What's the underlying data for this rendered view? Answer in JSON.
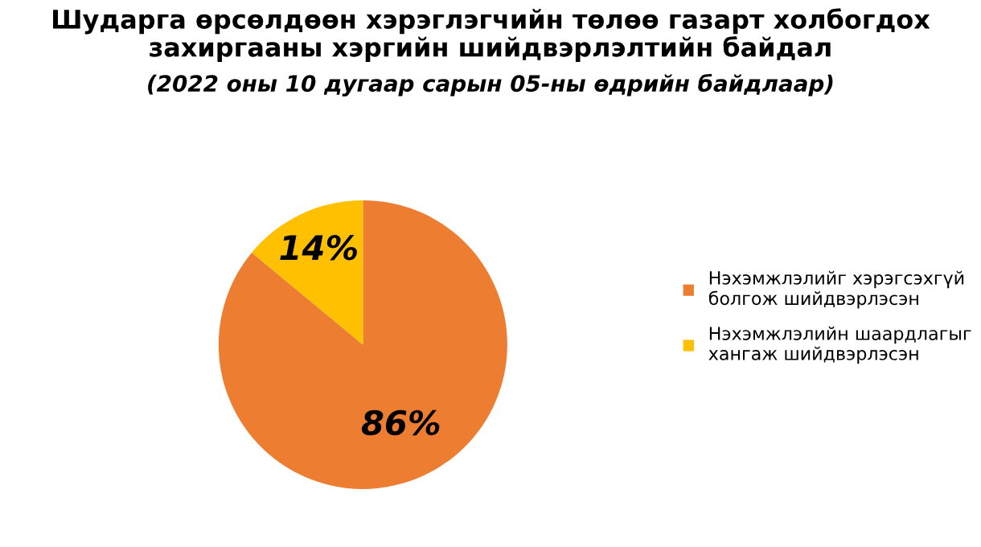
{
  "chart_data": {
    "type": "pie",
    "title": "Шударга өрсөлдөөн хэрэглэгчийн төлөө газарт холбогдох\nзахиргааны хэргийн шийдвэрлэлтийн байдал",
    "subtitle": "(2022 оны 10 дугаар сарын 05-ны өдрийн байдлаар)",
    "categories": [
      "Нэхэмжлэлийг хэрэгсэхгүй\nболгож шийдвэрлэсэн",
      "Нэхэмжлэлийн шаардлагыг\nхангаж шийдвэрлэсэн"
    ],
    "values": [
      86,
      14
    ],
    "colors": [
      "#ed7d31",
      "#ffc000"
    ],
    "value_labels": [
      "86%",
      "14%"
    ],
    "legend": "right"
  }
}
